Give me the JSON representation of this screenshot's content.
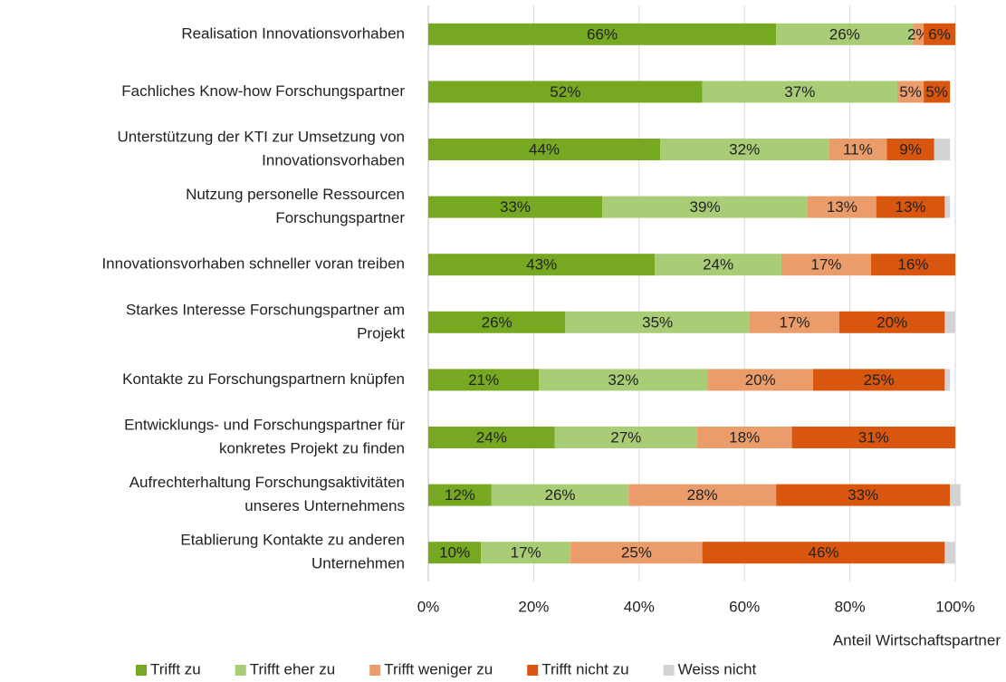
{
  "chart_data": {
    "type": "stacked-bar-horizontal",
    "categories": [
      [
        "Realisation Innovationsvorhaben"
      ],
      [
        "Fachliches Know-how Forschungspartner"
      ],
      [
        "Unterstützung der KTI zur Umsetzung von",
        "Innovationsvorhaben"
      ],
      [
        "Nutzung personelle Ressourcen",
        "Forschungspartner"
      ],
      [
        "Innovationsvorhaben schneller voran treiben"
      ],
      [
        "Starkes Interesse Forschungspartner am",
        "Projekt"
      ],
      [
        "Kontakte zu Forschungspartnern knüpfen"
      ],
      [
        "Entwicklungs- und Forschungspartner für",
        "konkretes Projekt zu finden"
      ],
      [
        "Aufrechterhaltung Forschungsaktivitäten",
        "unseres Unternehmens"
      ],
      [
        "Etablierung  Kontakte zu anderen",
        "Unternehmen"
      ]
    ],
    "series": [
      {
        "name": "Trifft zu",
        "color": "#77a822",
        "values": [
          66,
          52,
          44,
          33,
          43,
          26,
          21,
          24,
          12,
          10
        ],
        "value_labels": [
          "66%",
          "52%",
          "44%",
          "33%",
          "43%",
          "26%",
          "21%",
          "24%",
          "12%",
          "10%"
        ]
      },
      {
        "name": "Trifft eher zu",
        "color": "#a9cc76",
        "values": [
          26,
          37,
          32,
          39,
          24,
          35,
          32,
          27,
          26,
          17
        ],
        "value_labels": [
          "26%",
          "37%",
          "32%",
          "39%",
          "24%",
          "35%",
          "32%",
          "27%",
          "26%",
          "17%"
        ]
      },
      {
        "name": "Trifft weniger zu",
        "color": "#eb9c6b",
        "values": [
          2,
          5,
          11,
          13,
          17,
          17,
          20,
          18,
          28,
          25
        ],
        "value_labels": [
          "2%",
          "5%",
          "11%",
          "13%",
          "17%",
          "17%",
          "20%",
          "18%",
          "28%",
          "25%"
        ]
      },
      {
        "name": "Trifft nicht zu",
        "color": "#d9560f",
        "values": [
          6,
          5,
          9,
          13,
          16,
          20,
          25,
          31,
          33,
          46
        ],
        "value_labels": [
          "6%",
          "5%",
          "9%",
          "13%",
          "16%",
          "20%",
          "25%",
          "31%",
          "33%",
          "46%"
        ]
      },
      {
        "name": "Weiss nicht",
        "color": "#d3d3d3",
        "values": [
          0,
          0,
          3,
          1,
          0,
          2,
          1,
          0,
          2,
          2
        ]
      }
    ],
    "xlim": [
      0,
      100
    ],
    "xticks": [
      {
        "value": 0,
        "label": "0%"
      },
      {
        "value": 20,
        "label": "20%"
      },
      {
        "value": 40,
        "label": "40%"
      },
      {
        "value": 60,
        "label": "60%"
      },
      {
        "value": 80,
        "label": "80%"
      },
      {
        "value": 100,
        "label": "100%"
      }
    ],
    "x_label": "Anteil Wirtschaftspartner",
    "grid": true,
    "legend": "bottom"
  }
}
